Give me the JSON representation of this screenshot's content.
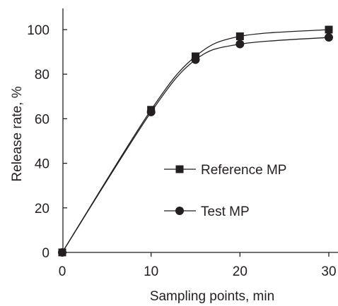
{
  "chart_data": {
    "type": "line",
    "title": "",
    "xlabel": "Sampling points, min",
    "ylabel": "Release rate, %",
    "xlim": [
      0,
      30
    ],
    "ylim": [
      0,
      100
    ],
    "xticks": [
      0,
      10,
      20,
      30
    ],
    "yticks": [
      0,
      20,
      40,
      60,
      80,
      100
    ],
    "grid": false,
    "legend_position": "center-right",
    "series": [
      {
        "name": "Reference MP",
        "marker": "square",
        "color": "#231f20",
        "x": [
          0,
          10,
          15,
          20,
          30
        ],
        "y": [
          0,
          64,
          88,
          97,
          100
        ]
      },
      {
        "name": "Test MP",
        "marker": "circle",
        "color": "#231f20",
        "x": [
          0,
          10,
          15,
          20,
          30
        ],
        "y": [
          0,
          63,
          86.5,
          93.5,
          96.5
        ]
      }
    ]
  }
}
